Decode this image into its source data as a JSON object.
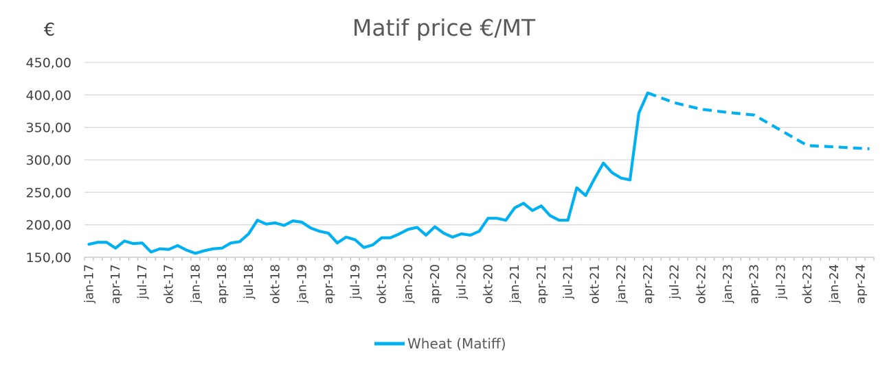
{
  "chart_data": {
    "type": "line",
    "title": "Matif price €/MT",
    "y_unit_label": "€",
    "ylim": [
      150,
      450
    ],
    "y_ticks": [
      "150,00",
      "200,00",
      "250,00",
      "300,00",
      "350,00",
      "400,00",
      "450,00"
    ],
    "grid": true,
    "legend_position": "bottom",
    "x_tick_labels": [
      "jan-17",
      "apr-17",
      "jul-17",
      "okt-17",
      "jan-18",
      "apr-18",
      "jul-18",
      "okt-18",
      "jan-19",
      "apr-19",
      "jul-19",
      "okt-19",
      "jan-20",
      "apr-20",
      "jul-20",
      "okt-20",
      "jan-21",
      "apr-21",
      "jul-21",
      "okt-21",
      "jan-22",
      "apr-22",
      "jul-22",
      "okt-22",
      "jan-23",
      "apr-23",
      "jul-23",
      "okt-23",
      "jan-24",
      "apr-24"
    ],
    "series": [
      {
        "name": "Wheat (Matiff)",
        "color": "#00b0f0",
        "actual": [
          170,
          173,
          173,
          164,
          175,
          171,
          172,
          158,
          163,
          162,
          168,
          161,
          156,
          160,
          163,
          164,
          172,
          174,
          186,
          207,
          201,
          203,
          199,
          206,
          204,
          195,
          190,
          187,
          172,
          181,
          177,
          165,
          169,
          180,
          180,
          186,
          193,
          196,
          184,
          197,
          187,
          181,
          186,
          184,
          190,
          210,
          210,
          207,
          226,
          233,
          222,
          229,
          214,
          207,
          207,
          257,
          245,
          271,
          295,
          280,
          272,
          269,
          372,
          403
        ],
        "forecast": [
          {
            "x": "apr-22",
            "value": 403
          },
          {
            "x": "jul-22",
            "value": 388
          },
          {
            "x": "okt-22",
            "value": 378
          },
          {
            "x": "jan-23",
            "value": 373
          },
          {
            "x": "apr-23",
            "value": 369
          },
          {
            "x": "okt-23",
            "value": 322
          },
          {
            "x": "jan-24",
            "value": 320
          },
          {
            "x": "may-24",
            "value": 317
          }
        ]
      }
    ]
  }
}
